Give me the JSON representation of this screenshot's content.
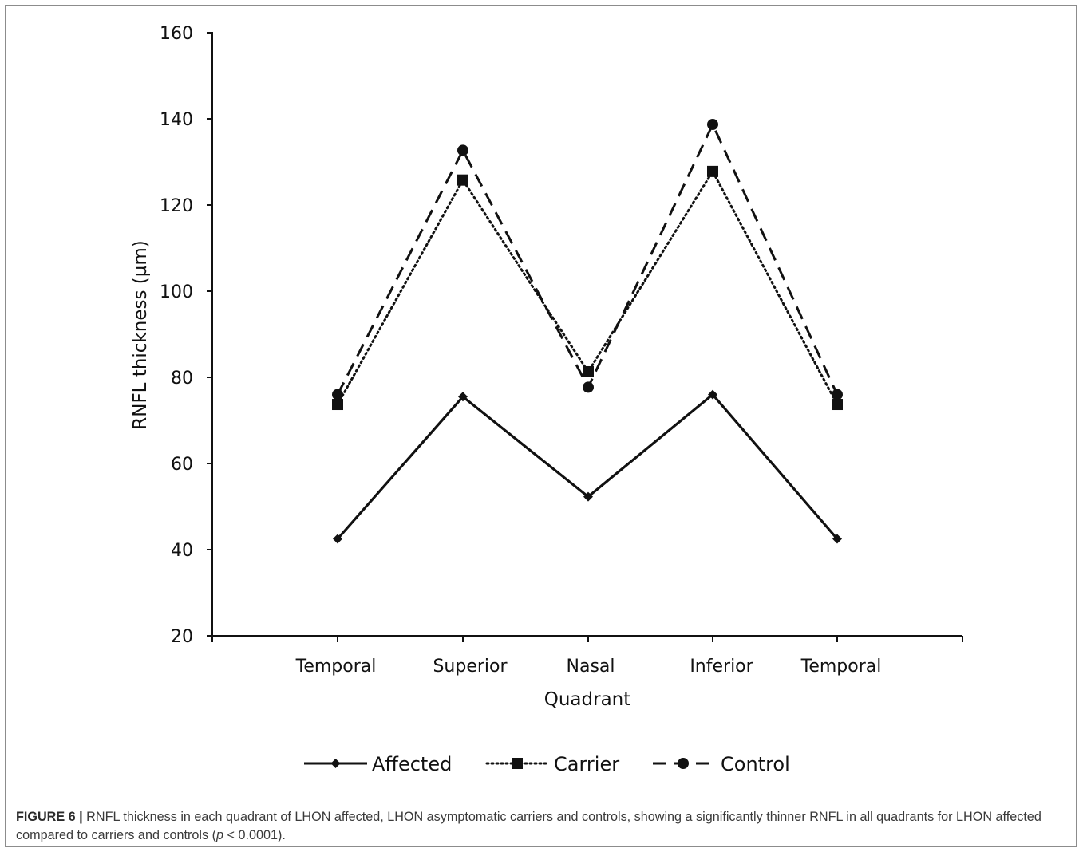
{
  "chart_data": {
    "type": "line",
    "categories": [
      "Temporal",
      "Superior",
      "Nasal",
      "Inferior",
      "Temporal"
    ],
    "xlabel": "Quadrant",
    "ylabel": "RNFL thickness (µm)",
    "ylim": [
      20,
      160
    ],
    "yticks": [
      20,
      40,
      60,
      80,
      100,
      120,
      140,
      160
    ],
    "grid": false,
    "legend_position": "bottom",
    "series": [
      {
        "name": "Affected",
        "values": [
          42.5,
          75.5,
          52.3,
          76.0,
          42.5
        ],
        "line_style": "solid",
        "marker": "diamond",
        "color": "#111111"
      },
      {
        "name": "Carrier",
        "values": [
          73.7,
          125.8,
          81.3,
          127.8,
          73.7
        ],
        "line_style": "dotted",
        "marker": "square",
        "color": "#111111"
      },
      {
        "name": "Control",
        "values": [
          76.0,
          132.7,
          77.7,
          138.7,
          76.0
        ],
        "line_style": "dashed",
        "marker": "circle",
        "color": "#111111"
      }
    ]
  },
  "caption": {
    "label": "FIGURE 6 |",
    "text_before_p": " RNFL thickness in each quadrant of LHON affected, LHON asymptomatic carriers and controls, showing a significantly thinner RNFL in all quadrants for LHON affected compared to carriers and controls (",
    "p_symbol": "p",
    "text_after_p": " < 0.0001)."
  }
}
